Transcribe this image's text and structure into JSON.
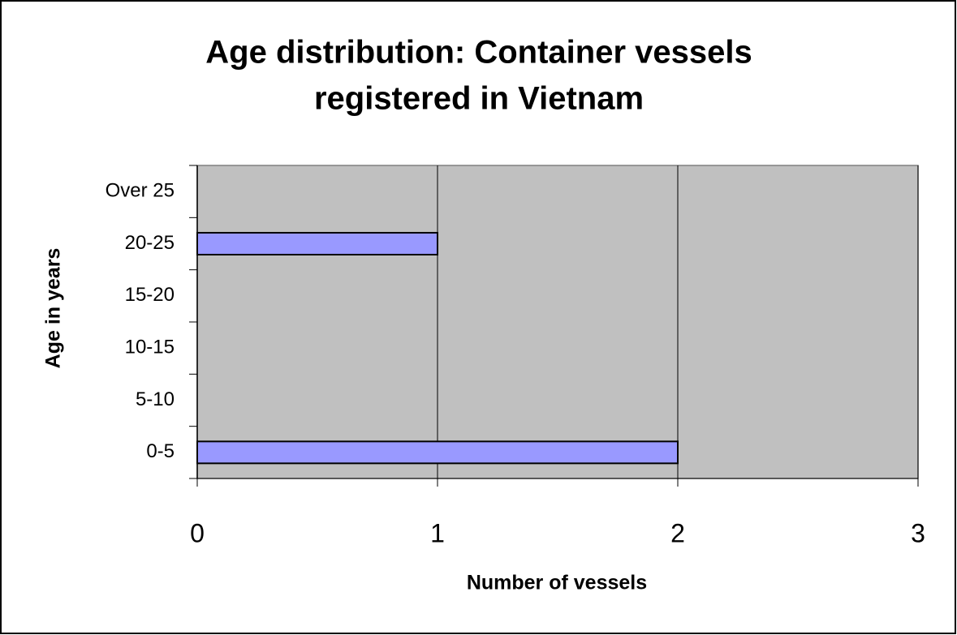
{
  "chart_data": {
    "type": "hbar",
    "title": [
      "Age distribution: Container vessels",
      "registered in Vietnam"
    ],
    "xlabel": "Number of vessels",
    "ylabel": "Age in years",
    "categories": [
      "0-5",
      "5-10",
      "10-15",
      "15-20",
      "20-25",
      "Over 25"
    ],
    "values": [
      2,
      0,
      0,
      0,
      1,
      0
    ],
    "color": "#9999ff",
    "xlim": [
      0,
      3
    ],
    "xticks": [
      0,
      1,
      2,
      3
    ],
    "grid": true
  }
}
